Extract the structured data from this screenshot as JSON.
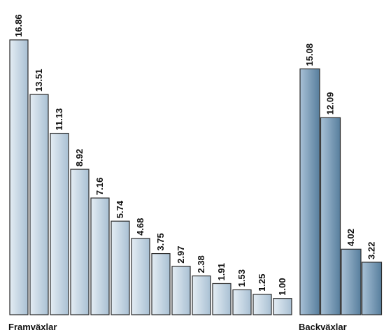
{
  "chart_data": {
    "type": "bar",
    "title": "",
    "xlabel": "",
    "ylabel": "",
    "ylim": [
      0,
      16.86
    ],
    "grid": false,
    "legend": "none",
    "colors": {
      "forward_light": "#e4edf4",
      "forward_dark": "#a9c0d3",
      "reverse_light": "#a8c1d6",
      "reverse_dark": "#577e9d",
      "outline": "#2a2a2a"
    },
    "groups": [
      {
        "name": "Framväxlar",
        "style": "forward",
        "values": [
          16.86,
          13.51,
          11.13,
          8.92,
          7.16,
          5.74,
          4.68,
          3.75,
          2.97,
          2.38,
          1.91,
          1.53,
          1.25,
          1.0
        ],
        "labels": [
          "16.86",
          "13.51",
          "11.13",
          "8.92",
          "7.16",
          "5.74",
          "4.68",
          "3.75",
          "2.97",
          "2.38",
          "1.91",
          "1.53",
          "1.25",
          "1.00"
        ]
      },
      {
        "name": "Backväxlar",
        "style": "reverse",
        "values": [
          15.08,
          12.09,
          4.02,
          3.22
        ],
        "labels": [
          "15.08",
          "12.09",
          "4.02",
          "3.22"
        ]
      }
    ]
  }
}
